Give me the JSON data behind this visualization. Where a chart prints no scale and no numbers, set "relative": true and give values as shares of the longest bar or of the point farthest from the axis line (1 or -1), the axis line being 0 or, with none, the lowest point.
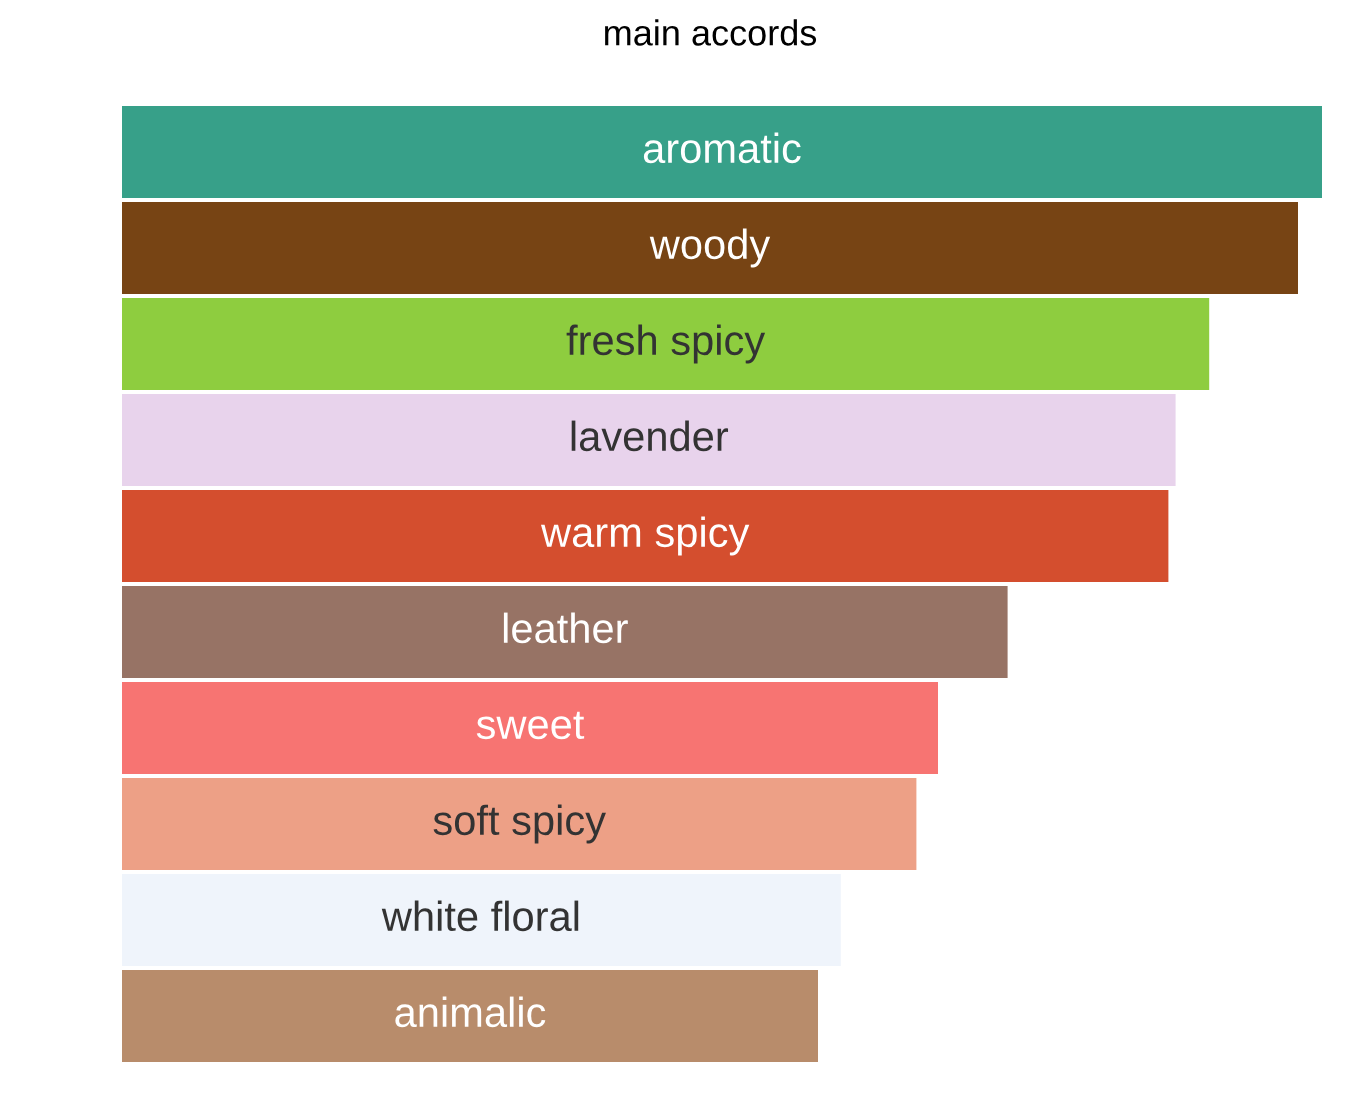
{
  "chart_data": {
    "type": "bar",
    "orientation": "horizontal",
    "relative": true,
    "title": "main accords",
    "categories": [
      "aromatic",
      "woody",
      "fresh spicy",
      "lavender",
      "warm spicy",
      "leather",
      "sweet",
      "soft spicy",
      "white floral",
      "animalic"
    ],
    "values": [
      1,
      0.98,
      0.906,
      0.878,
      0.872,
      0.738,
      0.68,
      0.662,
      0.599,
      0.58
    ],
    "colors": [
      "#37a089",
      "#774414",
      "#8ecd3f",
      "#e8d3ec",
      "#d44e2e",
      "#977365",
      "#f77472",
      "#eda086",
      "#eff4fb",
      "#b88c6b"
    ],
    "legend": false
  }
}
